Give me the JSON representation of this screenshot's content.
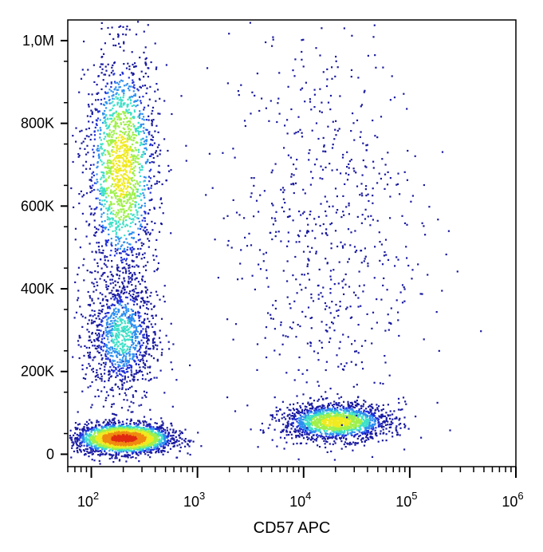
{
  "chart_data": {
    "type": "scatter",
    "plot_style": "density dot plot (flow cytometry)",
    "title": "",
    "xlabel": "CD57 APC",
    "ylabel": "",
    "x_scale": "log",
    "xlim": [
      60,
      1000000
    ],
    "ylim": [
      -30000,
      1050000
    ],
    "x_ticks": [
      {
        "value": 100,
        "base": "10",
        "exp": "2"
      },
      {
        "value": 1000,
        "base": "10",
        "exp": "3"
      },
      {
        "value": 10000,
        "base": "10",
        "exp": "4"
      },
      {
        "value": 100000,
        "base": "10",
        "exp": "5"
      },
      {
        "value": 1000000,
        "base": "10",
        "exp": "6"
      }
    ],
    "y_ticks": [
      {
        "value": 0,
        "label": "0"
      },
      {
        "value": 200000,
        "label": "200K"
      },
      {
        "value": 400000,
        "label": "400K"
      },
      {
        "value": 600000,
        "label": "600K"
      },
      {
        "value": 800000,
        "label": "800K"
      },
      {
        "value": 1000000,
        "label": "1,0M"
      }
    ],
    "populations": [
      {
        "center_x": 200,
        "center_y": 40000,
        "spread_log_x": 0.22,
        "spread_y": 18000,
        "density": "peak"
      },
      {
        "center_x": 20000,
        "center_y": 80000,
        "spread_log_x": 0.25,
        "spread_y": 22000,
        "density": "high"
      },
      {
        "center_x": 190,
        "center_y": 700000,
        "spread_log_x": 0.17,
        "spread_y": 140000,
        "density": "high"
      },
      {
        "center_x": 190,
        "center_y": 290000,
        "spread_log_x": 0.17,
        "spread_y": 80000,
        "density": "medium"
      },
      {
        "center_x": 15000,
        "center_y": 550000,
        "spread_log_x": 0.45,
        "spread_y": 250000,
        "density": "sparse"
      }
    ],
    "colormap": [
      "#1a1aa0",
      "#1f2fd8",
      "#2f8ff0",
      "#3fe0c8",
      "#9ff04a",
      "#f0ea20",
      "#f08a10",
      "#e02a10"
    ],
    "grid": false,
    "legend": "none"
  }
}
